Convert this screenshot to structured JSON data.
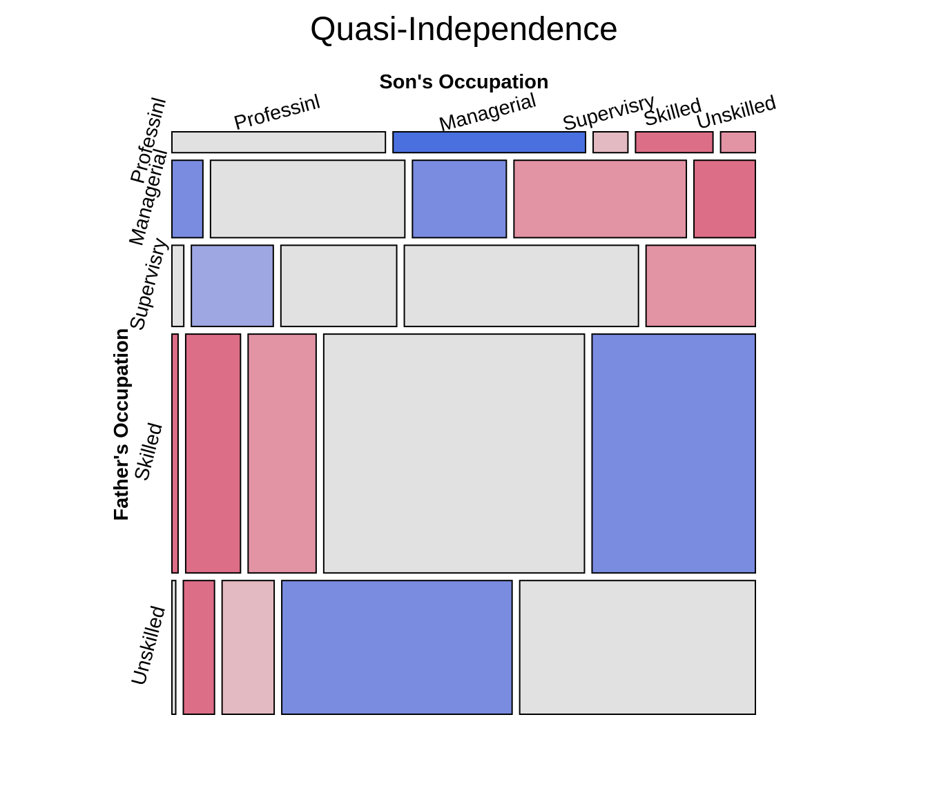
{
  "chart_data": {
    "type": "mosaic",
    "title": "Quasi-Independence",
    "col_variable": "Son's Occupation",
    "row_variable": "Father's Occupation",
    "col_levels": [
      "Professinl",
      "Managerial",
      "Supervisry",
      "Skilled",
      "Unskilled"
    ],
    "row_levels": [
      "Professinl",
      "Managerial",
      "Supervisry",
      "Skilled",
      "Unskilled"
    ],
    "row_proportions": [
      0.0355,
      0.1317,
      0.1382,
      0.4064,
      0.2275
    ],
    "cell_proportions": [
      [
        0.3682,
        0.332,
        0.06,
        0.1336,
        0.06
      ],
      [
        0.0532,
        0.3338,
        0.1613,
        0.2961,
        0.1055
      ],
      [
        0.0206,
        0.1424,
        0.2013,
        0.407,
        0.19
      ],
      [
        0.0106,
        0.0943,
        0.117,
        0.4484,
        0.2809
      ],
      [
        0.0059,
        0.0483,
        0.0807,
        0.3569,
        0.3652
      ]
    ],
    "residual_shading": [
      [
        "fit",
        "blue-strong",
        "red-light",
        "red-mid",
        "red-med"
      ],
      [
        "blue-mid",
        "fit",
        "blue-mid",
        "red-med",
        "red-mid"
      ],
      [
        "fit",
        "blue-light",
        "fit",
        "fit",
        "red-med"
      ],
      [
        "red-mid",
        "red-mid",
        "red-med",
        "fit",
        "blue-mid"
      ],
      [
        "fit",
        "red-mid",
        "red-light",
        "blue-mid",
        "fit"
      ]
    ],
    "colors": {
      "fit": "#e1e1e1",
      "blue-strong": "#4a70e0",
      "blue-mid": "#7a8ce0",
      "blue-light": "#9ea7e1",
      "red-mid": "#dd6e87",
      "red-med": "#e293a4",
      "red-light": "#e4bac2"
    }
  }
}
